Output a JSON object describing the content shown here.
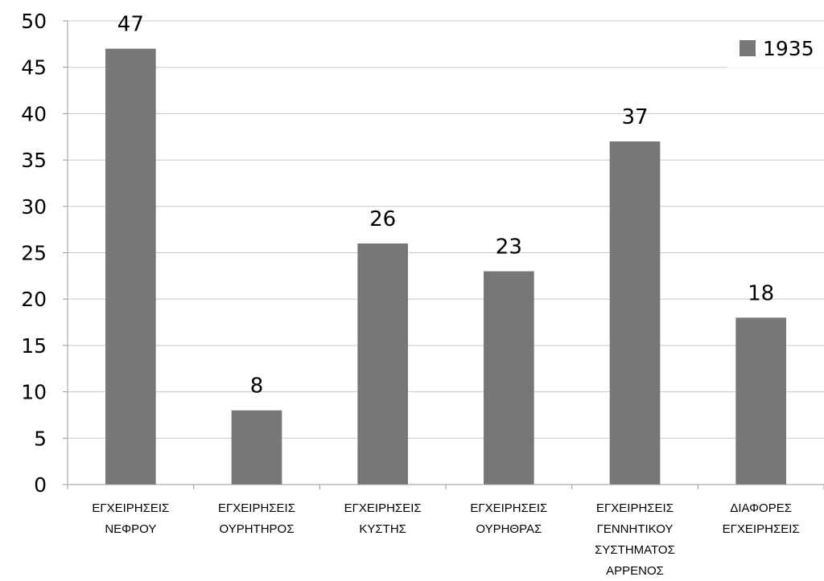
{
  "chart_data": {
    "type": "bar",
    "categories": [
      [
        "ΕΓΧΕΙΡΗΣΕΙΣ",
        "ΝΕΦΡΟΥ"
      ],
      [
        "ΕΓΧΕΙΡΗΣΕΙΣ",
        "ΟΥΡΗΤΗΡΟΣ"
      ],
      [
        "ΕΓΧΕΙΡΗΣΕΙΣ",
        "ΚΥΣΤΗΣ"
      ],
      [
        "ΕΓΧΕΙΡΗΣΕΙΣ",
        "ΟΥΡΗΘΡΑΣ"
      ],
      [
        "ΕΓΧΕΙΡΗΣΕΙΣ",
        "ΓΕΝΝΗΤΙΚΟΥ",
        "ΣΥΣΤΗΜΑΤΟΣ",
        "ΑΡΡΕΝΟΣ"
      ],
      [
        "ΔΙΑΦΟΡΕΣ",
        "ΕΓΧΕΙΡΗΣΕΙΣ"
      ]
    ],
    "series": [
      {
        "name": "1935",
        "values": [
          47,
          8,
          26,
          23,
          37,
          18
        ],
        "color": "#777777"
      }
    ],
    "ylim": [
      0,
      50
    ],
    "yticks": [
      0,
      5,
      10,
      15,
      20,
      25,
      30,
      35,
      40,
      45,
      50
    ],
    "grid": true,
    "legend": "top-right",
    "data_labels": true
  }
}
